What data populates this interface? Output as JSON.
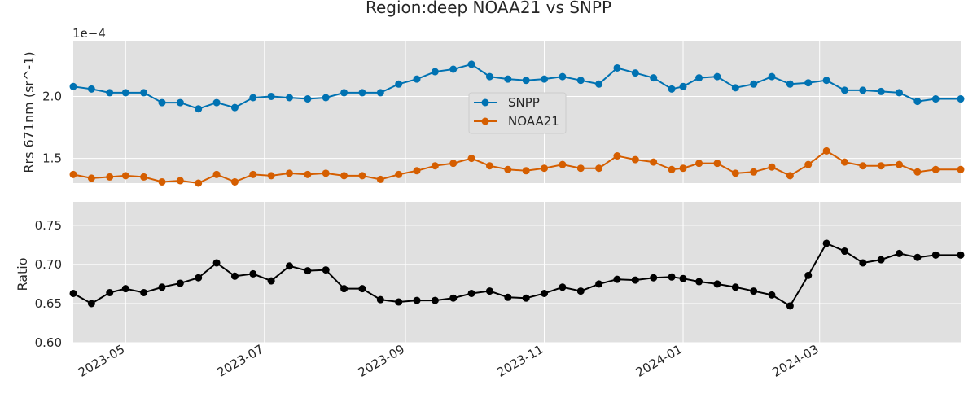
{
  "chart_data": {
    "title": "Region:deep NOAA21 vs SNPP",
    "x_tick_labels": [
      "2023-05",
      "2023-07",
      "2023-09",
      "2023-11",
      "2024-01",
      "2024-03"
    ],
    "x_tick_dates": [
      "2023-05-01",
      "2023-07-01",
      "2023-09-01",
      "2023-11-01",
      "2024-01-01",
      "2024-03-01"
    ],
    "xlim": [
      "2023-04-08",
      "2024-05-02"
    ],
    "dates": [
      "2023-04-08",
      "2023-04-16",
      "2023-04-24",
      "2023-05-01",
      "2023-05-09",
      "2023-05-17",
      "2023-05-25",
      "2023-06-02",
      "2023-06-10",
      "2023-06-18",
      "2023-06-26",
      "2023-07-04",
      "2023-07-12",
      "2023-07-20",
      "2023-07-28",
      "2023-08-05",
      "2023-08-13",
      "2023-08-21",
      "2023-08-29",
      "2023-09-06",
      "2023-09-14",
      "2023-09-22",
      "2023-09-30",
      "2023-10-08",
      "2023-10-16",
      "2023-10-24",
      "2023-11-01",
      "2023-11-09",
      "2023-11-17",
      "2023-11-25",
      "2023-12-03",
      "2023-12-11",
      "2023-12-19",
      "2023-12-27",
      "2024-01-01",
      "2024-01-08",
      "2024-01-16",
      "2024-01-24",
      "2024-02-01",
      "2024-02-09",
      "2024-02-17",
      "2024-02-25",
      "2024-03-04",
      "2024-03-12",
      "2024-03-20",
      "2024-03-28",
      "2024-04-05",
      "2024-04-13",
      "2024-04-21",
      "2024-05-02"
    ],
    "panels": [
      {
        "type": "line",
        "ylabel": "Rrs 671nm (sr^-1)",
        "offset_label": "1e−4",
        "ylim": [
          1.3,
          2.45
        ],
        "y_ticks": [
          1.5,
          2.0
        ],
        "y_tick_labels": [
          "1.5",
          "2.0"
        ],
        "grid": true,
        "legend_position": "center",
        "series": [
          {
            "name": "SNPP",
            "color": "#0072B2",
            "values": [
              2.08,
              2.06,
              2.03,
              2.03,
              2.03,
              1.95,
              1.95,
              1.9,
              1.95,
              1.91,
              1.99,
              2.0,
              1.99,
              1.98,
              1.99,
              2.03,
              2.03,
              2.03,
              2.1,
              2.14,
              2.2,
              2.22,
              2.26,
              2.16,
              2.14,
              2.13,
              2.14,
              2.16,
              2.13,
              2.1,
              2.23,
              2.19,
              2.15,
              2.06,
              2.08,
              2.15,
              2.16,
              2.07,
              2.1,
              2.16,
              2.1,
              2.11,
              2.13,
              2.05,
              2.05,
              2.04,
              2.03,
              1.96,
              1.98,
              1.98
            ]
          },
          {
            "name": "NOAA21",
            "color": "#D55E00",
            "values": [
              1.37,
              1.34,
              1.35,
              1.36,
              1.35,
              1.31,
              1.32,
              1.3,
              1.37,
              1.31,
              1.37,
              1.36,
              1.38,
              1.37,
              1.38,
              1.36,
              1.36,
              1.33,
              1.37,
              1.4,
              1.44,
              1.46,
              1.5,
              1.44,
              1.41,
              1.4,
              1.42,
              1.45,
              1.42,
              1.42,
              1.52,
              1.49,
              1.47,
              1.41,
              1.42,
              1.46,
              1.46,
              1.38,
              1.39,
              1.43,
              1.36,
              1.45,
              1.56,
              1.47,
              1.44,
              1.44,
              1.45,
              1.39,
              1.41,
              1.41
            ]
          }
        ]
      },
      {
        "type": "line",
        "ylabel": "Ratio",
        "ylim": [
          0.6,
          0.78
        ],
        "y_ticks": [
          0.6,
          0.65,
          0.7,
          0.75
        ],
        "y_tick_labels": [
          "0.60",
          "0.65",
          "0.70",
          "0.75"
        ],
        "grid": true,
        "series": [
          {
            "color": "#000000",
            "values": [
              0.663,
              0.65,
              0.664,
              0.669,
              0.664,
              0.671,
              0.676,
              0.683,
              0.702,
              0.685,
              0.688,
              0.679,
              0.698,
              0.692,
              0.693,
              0.669,
              0.669,
              0.655,
              0.652,
              0.654,
              0.654,
              0.657,
              0.663,
              0.666,
              0.658,
              0.657,
              0.663,
              0.671,
              0.666,
              0.675,
              0.681,
              0.68,
              0.683,
              0.684,
              0.682,
              0.678,
              0.675,
              0.671,
              0.666,
              0.661,
              0.647,
              0.686,
              0.727,
              0.717,
              0.702,
              0.706,
              0.714,
              0.709,
              0.712,
              0.712
            ]
          }
        ]
      }
    ]
  }
}
